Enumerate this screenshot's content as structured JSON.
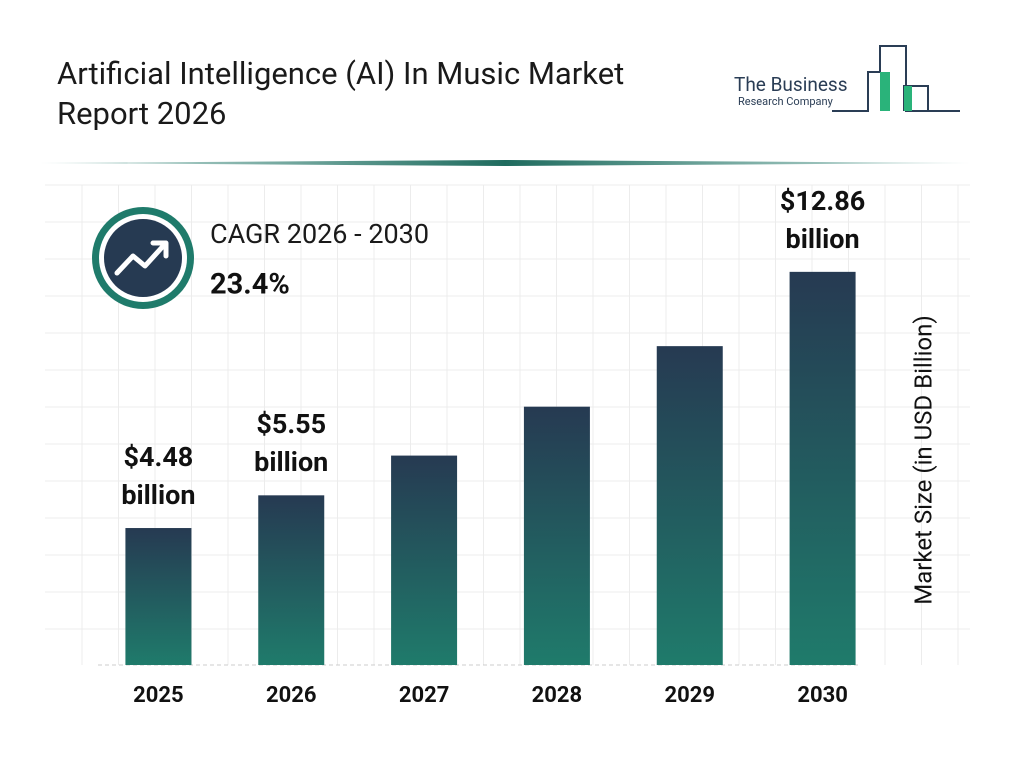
{
  "chart_data": {
    "type": "bar",
    "title": "Artificial Intelligence (AI) In Music Market Report 2026",
    "logo_line1": "The Business",
    "logo_line2": "Research Company",
    "cagr_label": "CAGR 2026 - 2030",
    "cagr_value": "23.4%",
    "y_axis_label": "Market Size (in USD Billion)",
    "categories": [
      "2025",
      "2026",
      "2027",
      "2028",
      "2029",
      "2030"
    ],
    "values": [
      4.48,
      5.55,
      6.85,
      8.45,
      10.43,
      12.86
    ],
    "value_labels": [
      "$4.48 billion",
      "$5.55 billion",
      null,
      null,
      null,
      "$12.86 billion"
    ],
    "color": [
      "#263a52",
      "#1f7b6b"
    ],
    "ylim": [
      0,
      14
    ]
  }
}
